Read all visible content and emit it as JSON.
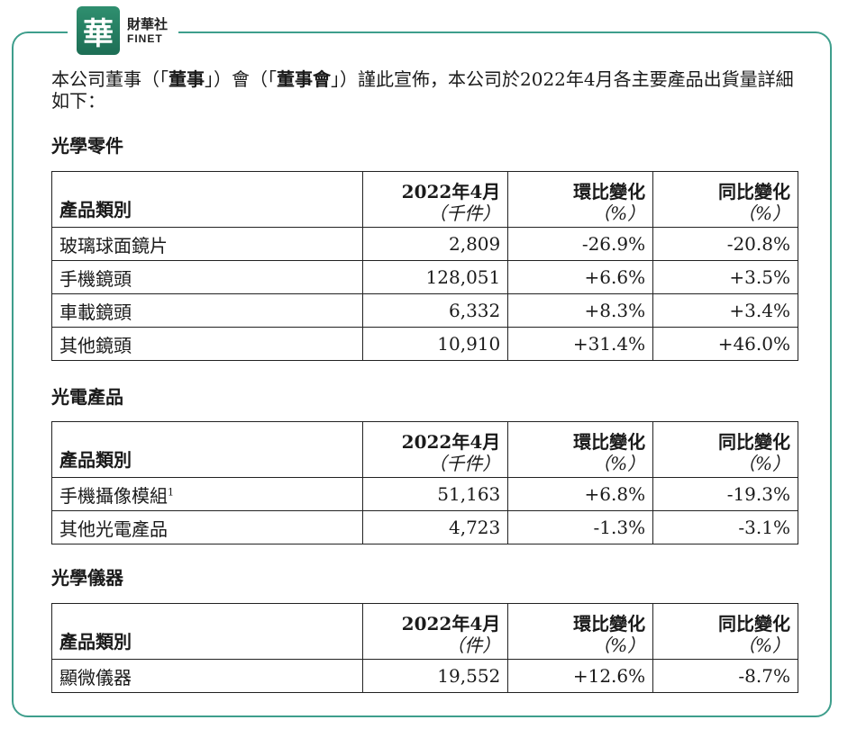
{
  "logo": {
    "mark": "華",
    "cn": "財華社",
    "en": "FINET"
  },
  "intro": {
    "p1": "本公司董事（「",
    "b1": "董事",
    "p2": "」）會（「",
    "b2": "董事會",
    "p3": "」）謹此宣佈，本公司於2022年4月各主要產品出貨量詳細如下："
  },
  "sections": [
    {
      "title": "光學零件",
      "headers": {
        "category": "產品類別",
        "month": "2022年4月",
        "month_unit": "（千件）",
        "mom": "環比變化",
        "mom_unit": "（%）",
        "yoy": "同比變化",
        "yoy_unit": "（%）"
      },
      "rows": [
        {
          "name": "玻璃球面鏡片",
          "qty": "2,809",
          "mom": "-26.9%",
          "yoy": "-20.8%"
        },
        {
          "name": "手機鏡頭",
          "qty": "128,051",
          "mom": "+6.6%",
          "yoy": "+3.5%"
        },
        {
          "name": "車載鏡頭",
          "qty": "6,332",
          "mom": "+8.3%",
          "yoy": "+3.4%"
        },
        {
          "name": "其他鏡頭",
          "qty": "10,910",
          "mom": "+31.4%",
          "yoy": "+46.0%"
        }
      ]
    },
    {
      "title": "光電產品",
      "headers": {
        "category": "產品類別",
        "month": "2022年4月",
        "month_unit": "（千件）",
        "mom": "環比變化",
        "mom_unit": "（%）",
        "yoy": "同比變化",
        "yoy_unit": "（%）"
      },
      "rows": [
        {
          "name": "手機攝像模組",
          "sup": "1",
          "qty": "51,163",
          "mom": "+6.8%",
          "yoy": "-19.3%"
        },
        {
          "name": "其他光電產品",
          "qty": "4,723",
          "mom": "-1.3%",
          "yoy": "-3.1%"
        }
      ]
    },
    {
      "title": "光學儀器",
      "headers": {
        "category": "產品類別",
        "month": "2022年4月",
        "month_unit": "（件）",
        "mom": "環比變化",
        "mom_unit": "（%）",
        "yoy": "同比變化",
        "yoy_unit": "（%）"
      },
      "rows": [
        {
          "name": "顯微儀器",
          "qty": "19,552",
          "mom": "+12.6%",
          "yoy": "-8.7%"
        }
      ]
    }
  ]
}
